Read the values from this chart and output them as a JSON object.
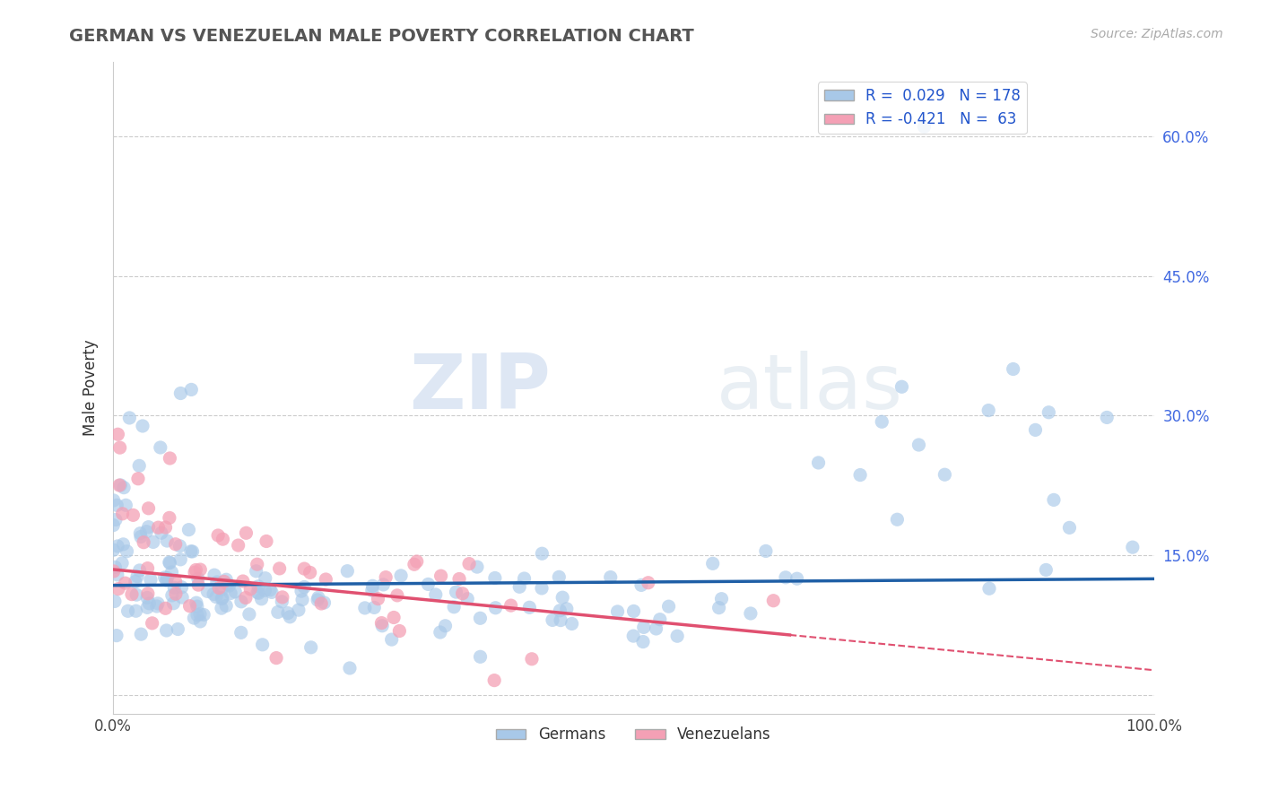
{
  "title": "GERMAN VS VENEZUELAN MALE POVERTY CORRELATION CHART",
  "source_text": "Source: ZipAtlas.com",
  "ylabel": "Male Poverty",
  "german_R": 0.029,
  "german_N": 178,
  "venezuelan_R": -0.421,
  "venezuelan_N": 63,
  "blue_color": "#a8c8e8",
  "pink_color": "#f4a0b5",
  "blue_line_color": "#1f5fa6",
  "pink_line_color": "#e05070",
  "legend_label_german": "Germans",
  "legend_label_venezuelan": "Venezuelans",
  "watermark_zip": "ZIP",
  "watermark_atlas": "atlas",
  "background_color": "#ffffff",
  "grid_color": "#cccccc",
  "ytick_positions": [
    0.0,
    0.15,
    0.3,
    0.45,
    0.6
  ],
  "ytick_labels": [
    "",
    "15.0%",
    "30.0%",
    "45.0%",
    "60.0%"
  ],
  "ylim": [
    -0.02,
    0.68
  ],
  "xlim": [
    0.0,
    1.0
  ]
}
